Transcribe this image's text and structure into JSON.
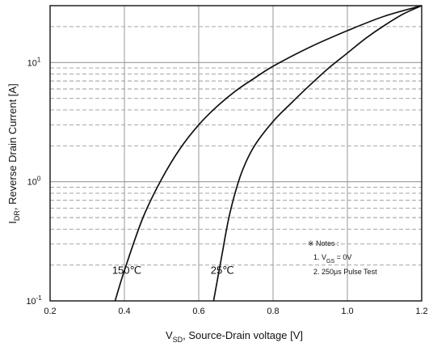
{
  "chart_data": {
    "type": "line",
    "title": "",
    "xlabel": {
      "main": "V",
      "sub": "SD",
      "rest": ", Source-Drain voltage [V]"
    },
    "ylabel": {
      "main": "I",
      "sub": "DR",
      "rest": ", Reverse Drain Current [A]"
    },
    "xlim": [
      0.2,
      1.2
    ],
    "ylim": [
      0.1,
      30
    ],
    "yscale": "log",
    "grid": true,
    "x_ticks": [
      0.2,
      0.4,
      0.6,
      0.8,
      1.0,
      1.2
    ],
    "x_tick_labels": [
      "0.2",
      "0.4",
      "0.6",
      "0.8",
      "1.0",
      "1.2"
    ],
    "y_ticks": [
      0.1,
      1,
      10
    ],
    "y_tick_labels": [
      {
        "base": "10",
        "exp": "-1"
      },
      {
        "base": "10",
        "exp": "0"
      },
      {
        "base": "10",
        "exp": "1"
      }
    ],
    "series": [
      {
        "name": "150℃",
        "x": [
          0.375,
          0.4,
          0.45,
          0.5,
          0.55,
          0.6,
          0.65,
          0.7,
          0.75,
          0.8,
          0.9,
          1.0,
          1.1,
          1.2
        ],
        "y": [
          0.1,
          0.18,
          0.5,
          1.05,
          1.9,
          3.0,
          4.3,
          5.8,
          7.4,
          9.3,
          13.5,
          18.5,
          24.5,
          30
        ]
      },
      {
        "name": "25℃",
        "x": [
          0.64,
          0.66,
          0.68,
          0.7,
          0.72,
          0.75,
          0.8,
          0.85,
          0.9,
          0.95,
          1.0,
          1.05,
          1.1,
          1.15,
          1.2
        ],
        "y": [
          0.1,
          0.22,
          0.48,
          0.85,
          1.3,
          2.0,
          3.2,
          4.6,
          6.5,
          9.0,
          12.0,
          16.0,
          20.5,
          25.5,
          30
        ]
      }
    ],
    "curve_labels": [
      "150℃",
      "25℃"
    ],
    "notes": {
      "header": "※ Notes :",
      "line1_prefix": "1. V",
      "line1_sub": "GS",
      "line1_suffix": " = 0V",
      "line2": "2. 250μs Pulse Test"
    },
    "colors": {
      "grid": "#9a9a9a",
      "curve": "#111111",
      "axis": "#111111"
    }
  }
}
